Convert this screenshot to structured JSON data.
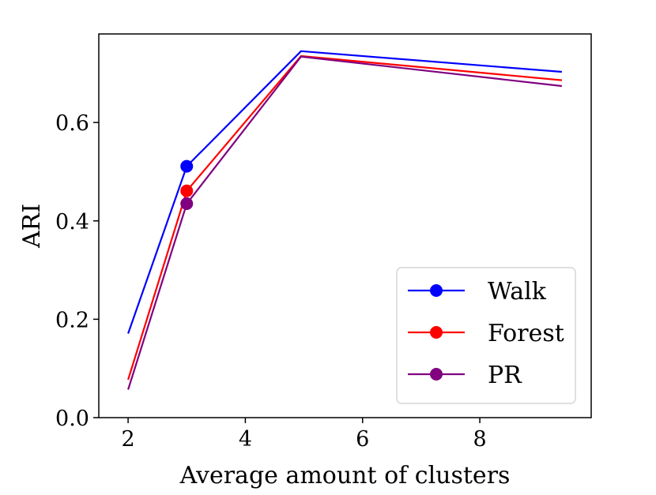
{
  "chart_data": {
    "type": "line",
    "title": "",
    "xlabel": "Average amount of clusters",
    "ylabel": "ARI",
    "xlim": [
      1.5,
      9.9
    ],
    "ylim": [
      0.0,
      0.78
    ],
    "xticks": [
      2,
      4,
      6,
      8
    ],
    "yticks": [
      0.0,
      0.2,
      0.4,
      0.6
    ],
    "xtick_labels": [
      "2",
      "4",
      "6",
      "8"
    ],
    "ytick_labels": [
      "0.0",
      "0.2",
      "0.4",
      "0.6"
    ],
    "grid": false,
    "legend_position": "lower-right",
    "series": [
      {
        "name": "Walk",
        "color": "#0000ff",
        "x": [
          2.0,
          3.0,
          4.95,
          9.4
        ],
        "y": [
          0.171,
          0.511,
          0.745,
          0.703
        ],
        "marker_x": 3.0,
        "marker_y": 0.511
      },
      {
        "name": "Forest",
        "color": "#ff0000",
        "x": [
          2.0,
          3.0,
          4.95,
          9.4
        ],
        "y": [
          0.077,
          0.461,
          0.735,
          0.686
        ],
        "marker_x": 3.0,
        "marker_y": 0.461
      },
      {
        "name": "PR",
        "color": "#800080",
        "x": [
          2.0,
          3.0,
          4.95,
          9.4
        ],
        "y": [
          0.057,
          0.435,
          0.734,
          0.674
        ],
        "marker_x": 3.0,
        "marker_y": 0.435
      }
    ]
  }
}
